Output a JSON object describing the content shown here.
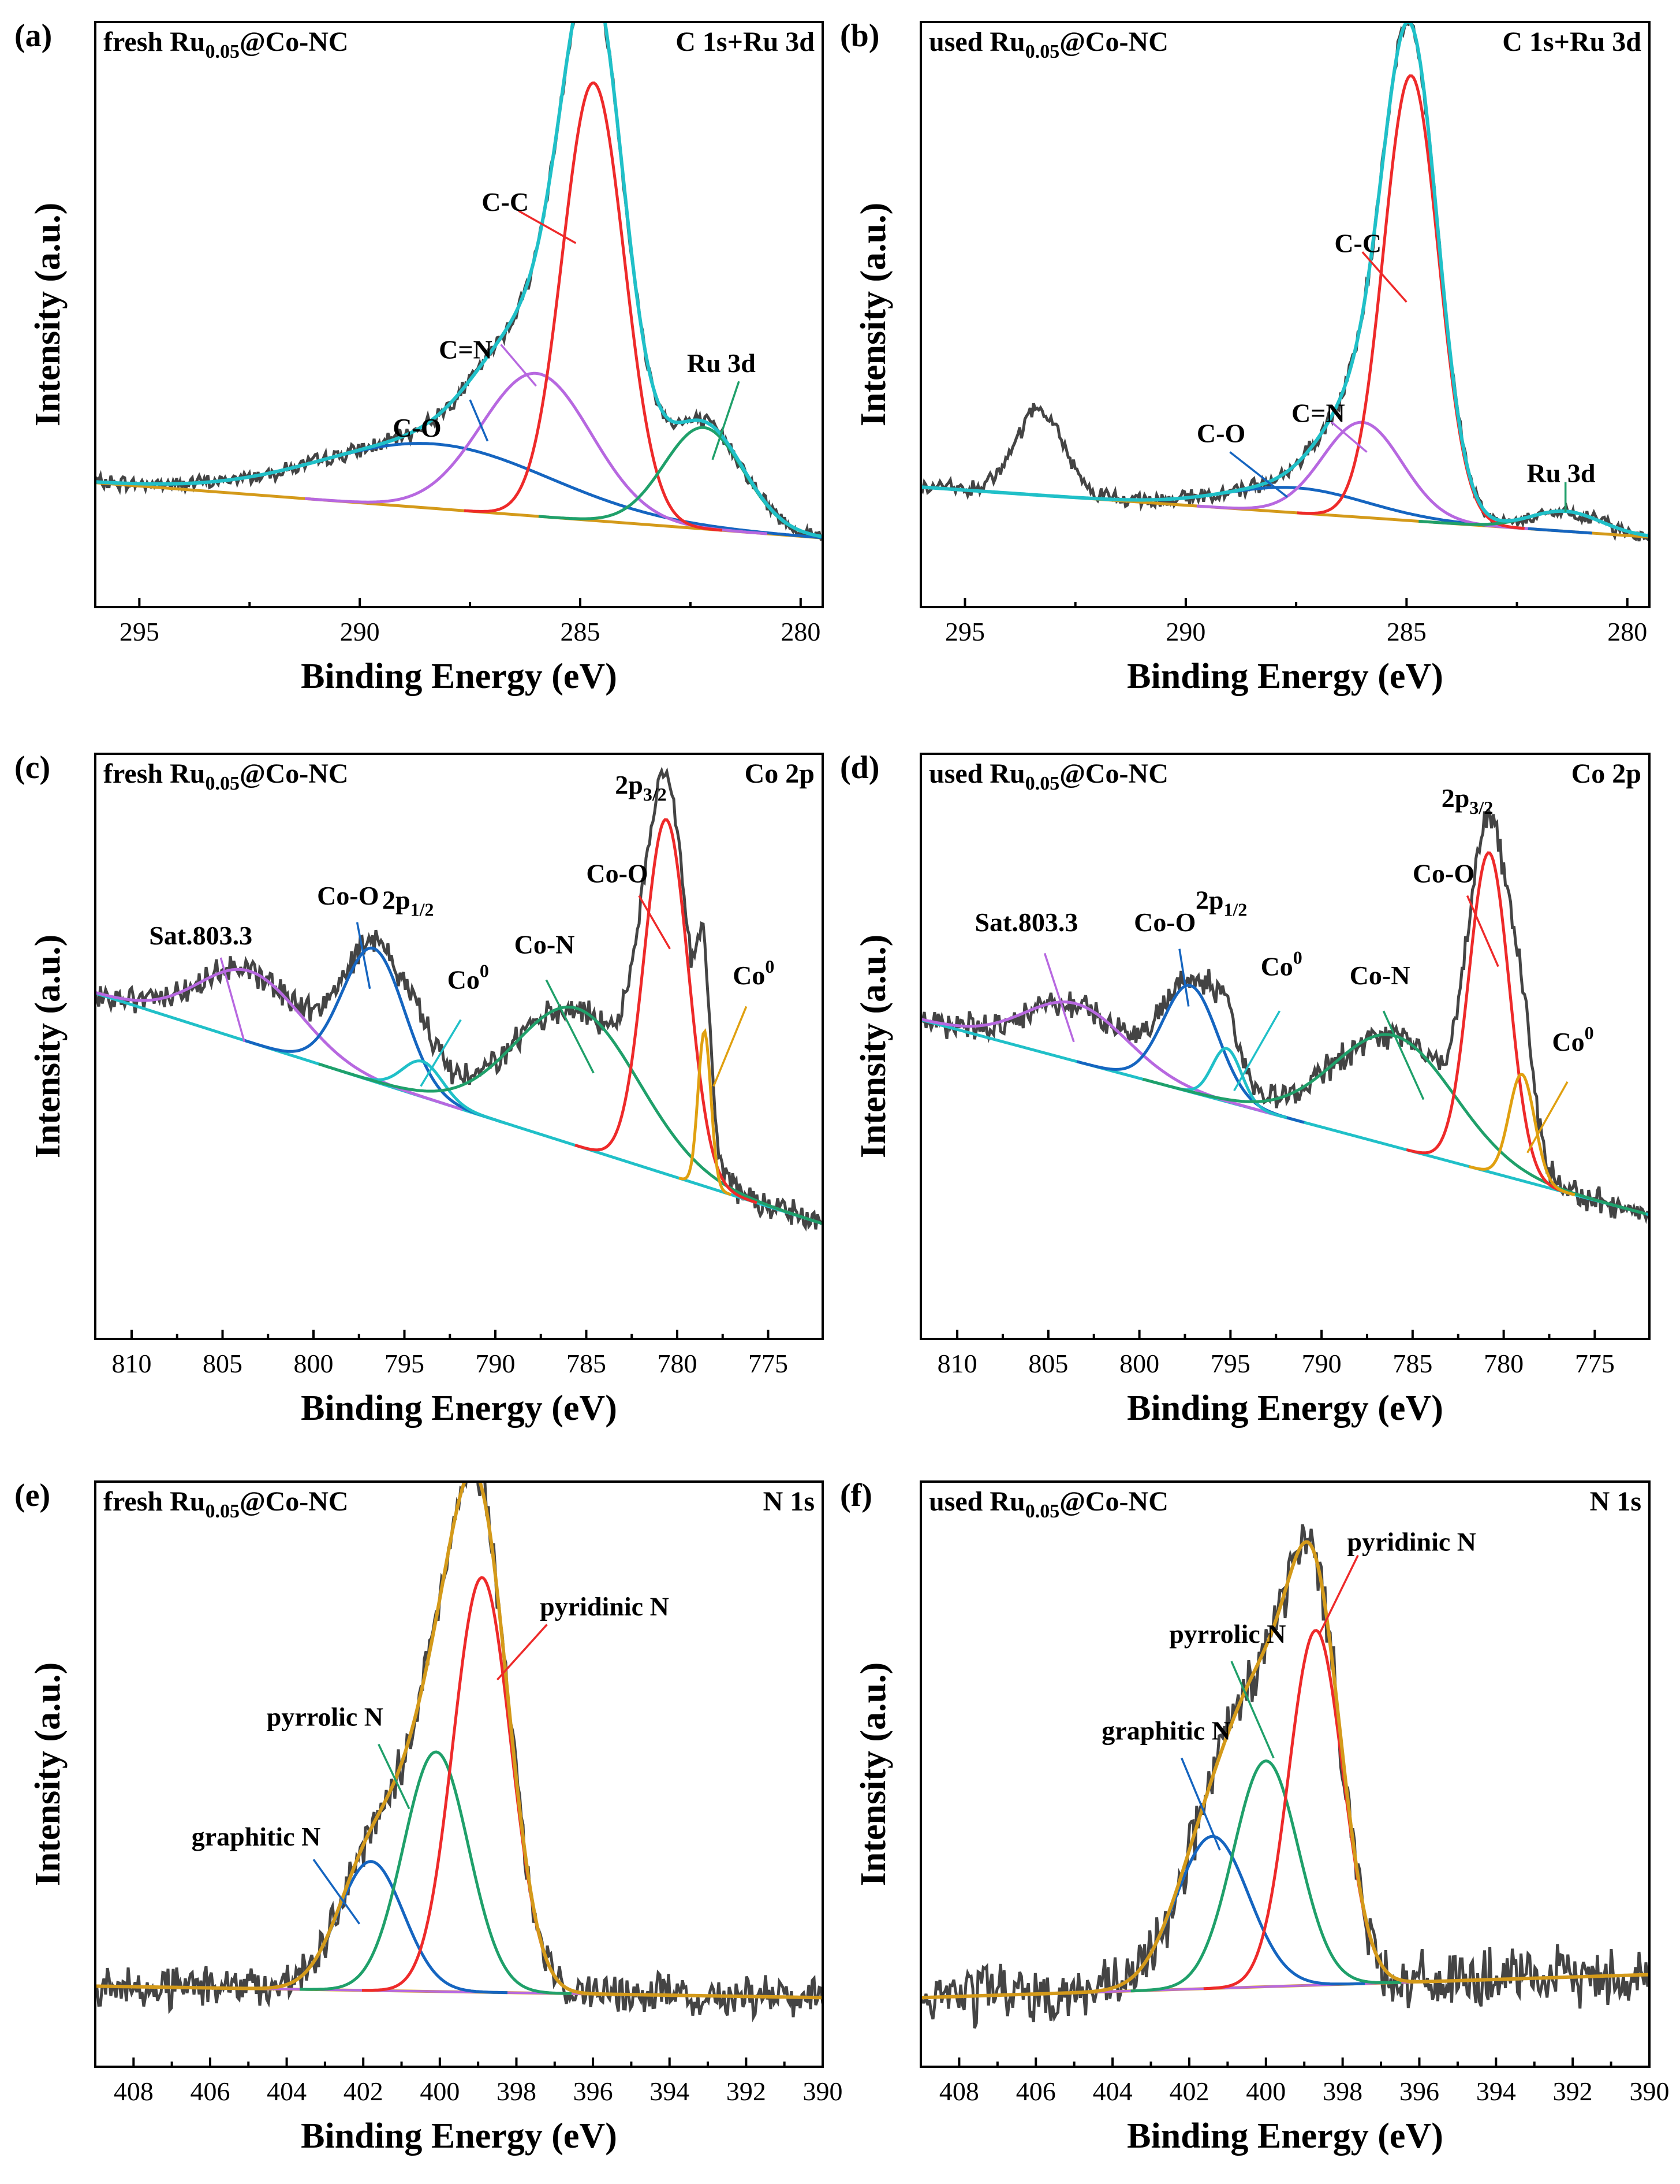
{
  "chart_data": [
    {
      "panel": "(a)",
      "type": "line",
      "sample": "fresh Ru",
      "sample_sub": "0.05",
      "sample_rest": "@Co-NC",
      "region": "C 1s+Ru 3d",
      "xlabel": "Binding Energy (eV)",
      "ylabel": "Intensity (a.u.)",
      "xlim": [
        296,
        279.5
      ],
      "ylim": [
        -0.15,
        1.12
      ],
      "xticks": [
        295,
        290,
        285,
        280
      ],
      "background": {
        "x0": 296,
        "y0": 0.12,
        "x1": 279.5,
        "y1": 0.0
      },
      "raw": {
        "color": "#444444",
        "base": "envelope",
        "noise": 0.013,
        "bumps": []
      },
      "peaks": [
        {
          "name": "C-O",
          "color": "#1565C0",
          "center": 288.3,
          "height": 0.14,
          "width": 2.6
        },
        {
          "name": "C=N",
          "color": "#B768E0",
          "center": 286.0,
          "height": 0.31,
          "width": 1.25
        },
        {
          "name": "C-C",
          "color": "#EE2A2A",
          "center": 284.7,
          "height": 0.95,
          "width": 0.7
        },
        {
          "name": "Ru 3d",
          "color": "#1FA06A",
          "center": 282.2,
          "height": 0.22,
          "width": 0.9
        }
      ],
      "envelope_color": "#20C0C8",
      "annotations": [
        {
          "text": "C-O",
          "tx": 288.7,
          "ty": 0.22,
          "lx1": 287.5,
          "ly1": 0.3,
          "lx2": 287.1,
          "ly2": 0.21,
          "color": "#1565C0"
        },
        {
          "text": "C=N",
          "tx": 287.6,
          "ty": 0.39,
          "lx1": 286.8,
          "ly1": 0.42,
          "lx2": 286.0,
          "ly2": 0.33,
          "color": "#B768E0"
        },
        {
          "text": "C-C",
          "tx": 286.7,
          "ty": 0.71,
          "lx1": 286.4,
          "ly1": 0.71,
          "lx2": 285.1,
          "ly2": 0.64,
          "color": "#EE2A2A"
        },
        {
          "text": "Ru 3d",
          "tx": 281.8,
          "ty": 0.36,
          "lx1": 281.4,
          "ly1": 0.34,
          "lx2": 282.0,
          "ly2": 0.17,
          "color": "#1FA06A"
        }
      ]
    },
    {
      "panel": "(b)",
      "type": "line",
      "sample": "used Ru",
      "sample_sub": "0.05",
      "sample_rest": "@Co-NC",
      "region": "C 1s+Ru 3d",
      "xlabel": "Binding Energy (eV)",
      "ylabel": "Intensity (a.u.)",
      "xlim": [
        296,
        279.5
      ],
      "ylim": [
        -0.05,
        1.12
      ],
      "xticks": [
        295,
        290,
        285,
        280
      ],
      "background": {
        "x0": 296,
        "y0": 0.19,
        "x1": 279.5,
        "y1": 0.09
      },
      "raw": {
        "color": "#444444",
        "base": "envelope",
        "noise": 0.013,
        "bumps": [
          {
            "center": 293.3,
            "height": 0.17,
            "width": 0.55
          }
        ]
      },
      "peaks": [
        {
          "name": "C-O",
          "color": "#1565C0",
          "center": 287.5,
          "height": 0.05,
          "width": 1.6
        },
        {
          "name": "C=N",
          "color": "#B768E0",
          "center": 286.0,
          "height": 0.19,
          "width": 0.9
        },
        {
          "name": "C-C",
          "color": "#EE2A2A",
          "center": 284.9,
          "height": 0.89,
          "width": 0.62
        },
        {
          "name": "Ru 3d",
          "color": "#1FA06A",
          "center": 281.4,
          "height": 0.04,
          "width": 0.8
        }
      ],
      "envelope_color": "#20C0C8",
      "annotations": [
        {
          "text": "C-O",
          "tx": 289.2,
          "ty": 0.28,
          "lx1": 289.0,
          "ly1": 0.26,
          "lx2": 287.7,
          "ly2": 0.17,
          "color": "#1565C0"
        },
        {
          "text": "C=N",
          "tx": 287.0,
          "ty": 0.32,
          "lx1": 286.7,
          "ly1": 0.32,
          "lx2": 285.9,
          "ly2": 0.26,
          "color": "#B768E0"
        },
        {
          "text": "C-C",
          "tx": 286.1,
          "ty": 0.66,
          "lx1": 286.0,
          "ly1": 0.66,
          "lx2": 285.0,
          "ly2": 0.56,
          "color": "#EE2A2A"
        },
        {
          "text": "Ru 3d",
          "tx": 281.5,
          "ty": 0.2,
          "lx1": 281.4,
          "ly1": 0.2,
          "lx2": 281.4,
          "ly2": 0.14,
          "color": "#1FA06A"
        }
      ]
    },
    {
      "panel": "(c)",
      "type": "line",
      "sample": "fresh Ru",
      "sample_sub": "0.05",
      "sample_rest": "@Co-NC",
      "region": "Co 2p",
      "xlabel": "Binding Energy (eV)",
      "ylabel": "Intensity (a.u.)",
      "xlim": [
        812,
        772
      ],
      "ylim": [
        -0.2,
        1.12
      ],
      "xticks": [
        810,
        805,
        800,
        795,
        790,
        785,
        780,
        775
      ],
      "background": {
        "x0": 812,
        "y0": 0.58,
        "x1": 772,
        "y1": 0.06
      },
      "raw": {
        "color": "#444444",
        "base": "envelope",
        "noise": 0.025,
        "bumps": []
      },
      "peaks": [
        {
          "name": "Sat.803.3",
          "color": "#B768E0",
          "center": 803.5,
          "height": 0.16,
          "width": 2.8
        },
        {
          "name": "Co-O 2p1/2",
          "color": "#1565C0",
          "center": 796.7,
          "height": 0.3,
          "width": 1.7
        },
        {
          "name": "Co0 2p1/2",
          "color": "#20C0C8",
          "center": 794.0,
          "height": 0.08,
          "width": 1.1
        },
        {
          "name": "Co-N",
          "color": "#1FA06A",
          "center": 785.5,
          "height": 0.31,
          "width": 3.4
        },
        {
          "name": "Co-O 2p3/2",
          "color": "#EE2A2A",
          "center": 780.6,
          "height": 0.8,
          "width": 1.2
        },
        {
          "name": "Co0 2p3/2",
          "color": "#E0A010",
          "center": 778.5,
          "height": 0.35,
          "width": 0.35
        }
      ],
      "envelope_color": null,
      "annotations": [
        {
          "text": "Sat.803.3",
          "tx": 806.2,
          "ty": 0.69,
          "lx1": 805.1,
          "ly1": 0.66,
          "lx2": 803.8,
          "ly2": 0.47,
          "color": "#B768E0"
        },
        {
          "text": "Co-O",
          "tx": 798.1,
          "ty": 0.78,
          "lx1": 797.6,
          "ly1": 0.74,
          "lx2": 796.9,
          "ly2": 0.59,
          "color": "#1565C0"
        },
        {
          "text": "2p",
          "sub": "1/2",
          "tx": 794.8,
          "ty": 0.77,
          "lx1": 0,
          "ly1": 0,
          "lx2": 0,
          "ly2": 0,
          "color": null
        },
        {
          "text": "Co",
          "sup": "0",
          "tx": 791.5,
          "ty": 0.59,
          "lx1": 791.9,
          "ly1": 0.52,
          "lx2": 794.1,
          "ly2": 0.37,
          "color": "#20C0C8"
        },
        {
          "text": "Co-N",
          "tx": 787.3,
          "ty": 0.67,
          "lx1": 787.2,
          "ly1": 0.61,
          "lx2": 784.6,
          "ly2": 0.4,
          "color": "#1FA06A"
        },
        {
          "text": "Co-O",
          "tx": 783.3,
          "ty": 0.83,
          "lx1": 782.1,
          "ly1": 0.8,
          "lx2": 780.4,
          "ly2": 0.68,
          "color": "#EE2A2A"
        },
        {
          "text": "2p",
          "sub": "3/2",
          "tx": 782.0,
          "ty": 1.03,
          "lx1": 0,
          "ly1": 0,
          "lx2": 0,
          "ly2": 0,
          "color": null
        },
        {
          "text": "Co",
          "sup": "0",
          "tx": 775.8,
          "ty": 0.6,
          "lx1": 776.2,
          "ly1": 0.55,
          "lx2": 778.0,
          "ly2": 0.37,
          "color": "#E0A010"
        }
      ]
    },
    {
      "panel": "(d)",
      "type": "line",
      "sample": "used Ru",
      "sample_sub": "0.05",
      "sample_rest": "@Co-NC",
      "region": "Co 2p",
      "xlabel": "Binding Energy (eV)",
      "ylabel": "Intensity (a.u.)",
      "xlim": [
        812,
        772
      ],
      "ylim": [
        -0.2,
        1.12
      ],
      "xticks": [
        810,
        805,
        800,
        795,
        790,
        785,
        780,
        775
      ],
      "background": {
        "x0": 812,
        "y0": 0.52,
        "x1": 772,
        "y1": 0.08
      },
      "raw": {
        "color": "#444444",
        "base": "envelope",
        "noise": 0.025,
        "bumps": []
      },
      "peaks": [
        {
          "name": "Sat.803.3",
          "color": "#B768E0",
          "center": 803.5,
          "height": 0.13,
          "width": 2.8
        },
        {
          "name": "Co-O 2p1/2",
          "color": "#1565C0",
          "center": 797.2,
          "height": 0.24,
          "width": 1.5
        },
        {
          "name": "Co0 2p1/2",
          "color": "#20C0C8",
          "center": 795.2,
          "height": 0.12,
          "width": 0.8
        },
        {
          "name": "Co-N",
          "color": "#1FA06A",
          "center": 786.0,
          "height": 0.25,
          "width": 3.3
        },
        {
          "name": "Co-O 2p3/2",
          "color": "#EE2A2A",
          "center": 780.8,
          "height": 0.72,
          "width": 1.1
        },
        {
          "name": "Co0 2p3/2",
          "color": "#E0A010",
          "center": 779.0,
          "height": 0.24,
          "width": 0.7
        }
      ],
      "envelope_color": null,
      "annotations": [
        {
          "text": "Sat.803.3",
          "tx": 806.2,
          "ty": 0.72,
          "lx1": 805.2,
          "ly1": 0.67,
          "lx2": 803.6,
          "ly2": 0.47,
          "color": "#B768E0"
        },
        {
          "text": "Co-O",
          "tx": 798.6,
          "ty": 0.72,
          "lx1": 797.8,
          "ly1": 0.68,
          "lx2": 797.3,
          "ly2": 0.55,
          "color": "#1565C0"
        },
        {
          "text": "2p",
          "sub": "1/2",
          "tx": 795.5,
          "ty": 0.77,
          "lx1": 0,
          "ly1": 0,
          "lx2": 0,
          "ly2": 0,
          "color": null
        },
        {
          "text": "Co",
          "sup": "0",
          "tx": 792.2,
          "ty": 0.62,
          "lx1": 792.3,
          "ly1": 0.54,
          "lx2": 794.8,
          "ly2": 0.36,
          "color": "#20C0C8"
        },
        {
          "text": "Co-N",
          "tx": 786.8,
          "ty": 0.6,
          "lx1": 786.6,
          "ly1": 0.54,
          "lx2": 784.4,
          "ly2": 0.34,
          "color": "#1FA06A"
        },
        {
          "text": "Co-O",
          "tx": 783.3,
          "ty": 0.83,
          "lx1": 782.0,
          "ly1": 0.8,
          "lx2": 780.3,
          "ly2": 0.64,
          "color": "#EE2A2A"
        },
        {
          "text": "2p",
          "sub": "3/2",
          "tx": 782.0,
          "ty": 1.0,
          "lx1": 0,
          "ly1": 0,
          "lx2": 0,
          "ly2": 0,
          "color": null
        },
        {
          "text": "Co",
          "sup": "0",
          "tx": 776.2,
          "ty": 0.45,
          "lx1": 776.5,
          "ly1": 0.38,
          "lx2": 778.7,
          "ly2": 0.22,
          "color": "#E0A010"
        }
      ]
    },
    {
      "panel": "(e)",
      "type": "line",
      "sample": "fresh Ru",
      "sample_sub": "0.05",
      "sample_rest": "@Co-NC",
      "region": "N 1s",
      "xlabel": "Binding Energy (eV)",
      "ylabel": "Intensity (a.u.)",
      "xlim": [
        409,
        390
      ],
      "ylim": [
        -0.15,
        1.12
      ],
      "xticks": [
        408,
        406,
        404,
        402,
        400,
        398,
        396,
        394,
        392,
        390
      ],
      "background": {
        "x0": 409,
        "y0": 0.025,
        "x1": 390,
        "y1": 0.0
      },
      "raw": {
        "color": "#444444",
        "base": "envelope",
        "noise": 0.035,
        "bumps": []
      },
      "peaks": [
        {
          "name": "graphitic N",
          "color": "#1565C0",
          "center": 401.8,
          "height": 0.28,
          "width": 0.85
        },
        {
          "name": "pyrrolic N",
          "color": "#1FA06A",
          "center": 400.1,
          "height": 0.52,
          "width": 0.85
        },
        {
          "name": "pyridinic N",
          "color": "#EE2A2A",
          "center": 398.9,
          "height": 0.9,
          "width": 0.75
        }
      ],
      "envelope_color": "#D49A1A",
      "extra_lines": [
        {
          "color": "#B768E0",
          "x0": 409,
          "y0": 0.025,
          "x1": 390,
          "y1": 0.0
        }
      ],
      "annotations": [
        {
          "text": "graphitic N",
          "tx": 404.8,
          "ty": 0.33,
          "lx1": 403.3,
          "ly1": 0.3,
          "lx2": 402.1,
          "ly2": 0.16,
          "color": "#1565C0"
        },
        {
          "text": "pyrrolic N",
          "tx": 403.0,
          "ty": 0.59,
          "lx1": 401.6,
          "ly1": 0.55,
          "lx2": 400.8,
          "ly2": 0.41,
          "color": "#1FA06A"
        },
        {
          "text": "pyridinic N",
          "tx": 395.7,
          "ty": 0.83,
          "lx1": 397.2,
          "ly1": 0.81,
          "lx2": 398.5,
          "ly2": 0.69,
          "color": "#EE2A2A"
        }
      ]
    },
    {
      "panel": "(f)",
      "type": "line",
      "sample": "used Ru",
      "sample_sub": "0.05",
      "sample_rest": "@Co-NC",
      "region": "N 1s",
      "xlabel": "Binding Energy (eV)",
      "ylabel": "Intensity (a.u.)",
      "xlim": [
        409,
        390
      ],
      "ylim": [
        -0.15,
        1.12
      ],
      "xticks": [
        408,
        406,
        404,
        402,
        400,
        398,
        396,
        394,
        392,
        390
      ],
      "background": {
        "x0": 409,
        "y0": 0.0,
        "x1": 390,
        "y1": 0.05
      },
      "raw": {
        "color": "#444444",
        "base": "envelope",
        "noise": 0.05,
        "bumps": []
      },
      "peaks": [
        {
          "name": "graphitic N",
          "color": "#1565C0",
          "center": 401.4,
          "height": 0.33,
          "width": 0.95
        },
        {
          "name": "pyrrolic N",
          "color": "#1FA06A",
          "center": 400.0,
          "height": 0.49,
          "width": 0.85
        },
        {
          "name": "pyridinic N",
          "color": "#EE2A2A",
          "center": 398.7,
          "height": 0.77,
          "width": 0.7
        }
      ],
      "envelope_color": "#D49A1A",
      "extra_lines": [
        {
          "color": "#B768E0",
          "x0": 409,
          "y0": 0.0,
          "x1": 390,
          "y1": 0.05
        }
      ],
      "annotations": [
        {
          "text": "graphitic N",
          "tx": 402.6,
          "ty": 0.56,
          "lx1": 402.2,
          "ly1": 0.52,
          "lx2": 401.2,
          "ly2": 0.32,
          "color": "#1565C0"
        },
        {
          "text": "pyrrolic N",
          "tx": 401.0,
          "ty": 0.77,
          "lx1": 400.9,
          "ly1": 0.73,
          "lx2": 399.8,
          "ly2": 0.52,
          "color": "#1FA06A"
        },
        {
          "text": "pyridinic N",
          "tx": 396.2,
          "ty": 0.97,
          "lx1": 397.6,
          "ly1": 0.96,
          "lx2": 398.6,
          "ly2": 0.79,
          "color": "#EE2A2A"
        }
      ]
    }
  ]
}
